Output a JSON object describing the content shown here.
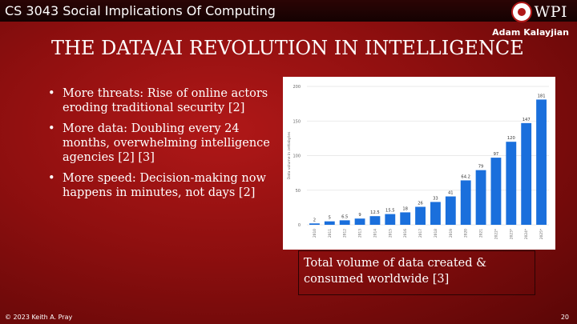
{
  "header": {
    "course_title": "CS 3043 Social Implications Of Computing",
    "logo_text": "WPI",
    "author": "Adam Kalayjian"
  },
  "slide": {
    "title": "THE DATA/AI REVOLUTION IN INTELLIGENCE",
    "bullets": [
      "More threats: Rise of online actors eroding traditional security [2]",
      "More data: Doubling every 24 months, overwhelming intelligence agencies [2] [3]",
      "More speed: Decision-making now happens in minutes, not days [2]"
    ],
    "caption": "Total volume of data created & consumed worldwide [3]"
  },
  "footer": {
    "copyright": "© 2023 Keith A. Pray",
    "page_number": "20"
  },
  "colors": {
    "bar": "#1a6fdc",
    "slide_red": "#9a1111"
  },
  "chart_data": {
    "type": "bar",
    "categories": [
      "2010",
      "2011",
      "2012",
      "2013",
      "2014",
      "2015",
      "2016",
      "2017",
      "2018",
      "2019",
      "2020",
      "2021",
      "2022*",
      "2023*",
      "2024*",
      "2025*"
    ],
    "values": [
      2,
      5,
      6.5,
      9,
      12.5,
      15.5,
      18,
      26,
      33,
      41,
      64.2,
      79,
      97,
      120,
      147,
      181
    ],
    "value_labels": [
      "2",
      "5",
      "6.5",
      "9",
      "12.5",
      "15.5",
      "18",
      "26",
      "33",
      "41",
      "64.2",
      "79",
      "97",
      "120",
      "147",
      "181"
    ],
    "ylabel": "Data volume in zettabytes",
    "ylim": [
      0,
      200
    ],
    "yticks": [
      0,
      50,
      100,
      150,
      200
    ],
    "grid": true
  }
}
